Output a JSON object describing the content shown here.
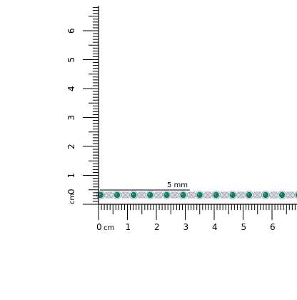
{
  "photo": {
    "subject": "bracelet",
    "stone_color": "#0f7d6b",
    "metal_color": "#d9dde2"
  },
  "ruler": {
    "unit_label": "cm",
    "x_ticks": [
      "0",
      "1",
      "2",
      "3",
      "4",
      "5",
      "6"
    ],
    "y_ticks": [
      "0",
      "1",
      "2",
      "3",
      "4",
      "5",
      "6"
    ],
    "y_unit_label": "cm",
    "width_callout": "5 mm"
  }
}
